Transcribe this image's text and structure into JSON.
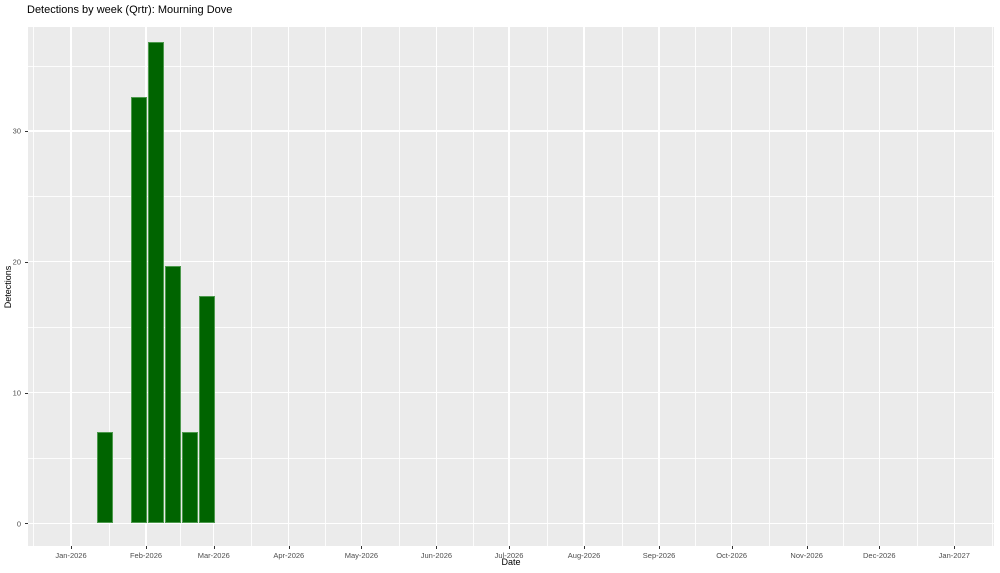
{
  "title": "Detections by week (Qrtr): Mourning Dove",
  "chart_data": {
    "type": "bar",
    "title": "Detections by week (Qrtr): Mourning Dove",
    "xlabel": "Date",
    "ylabel": "Detections",
    "legend_position": "none",
    "grid": true,
    "panel_bg": "#ebebeb",
    "grid_color": "#ffffff",
    "bar_fill": "#006400",
    "bar_border": "#4d994d",
    "tick_label_color": "#4d4d4d",
    "x_range": [
      "2026-01-01",
      "2027-01-01"
    ],
    "ylim": [
      0,
      37.9
    ],
    "y_ticks": [
      0,
      10,
      20,
      30
    ],
    "y_minor_ticks": [
      5,
      15,
      25,
      35
    ],
    "x_tick_labels": [
      "Jan-2026",
      "Feb-2026",
      "Mar-2026",
      "Apr-2026",
      "May-2026",
      "Jun-2026",
      "Jul-2026",
      "Aug-2026",
      "Sep-2026",
      "Oct-2026",
      "Nov-2026",
      "Dec-2026",
      "Jan-2027"
    ],
    "bars": [
      {
        "week": "2026-01-15",
        "value": 7
      },
      {
        "week": "2026-01-29",
        "value": 32.6
      },
      {
        "week": "2026-02-05",
        "value": 36.8
      },
      {
        "week": "2026-02-12",
        "value": 19.7
      },
      {
        "week": "2026-02-19",
        "value": 7
      },
      {
        "week": "2026-02-26",
        "value": 17.4
      }
    ]
  }
}
